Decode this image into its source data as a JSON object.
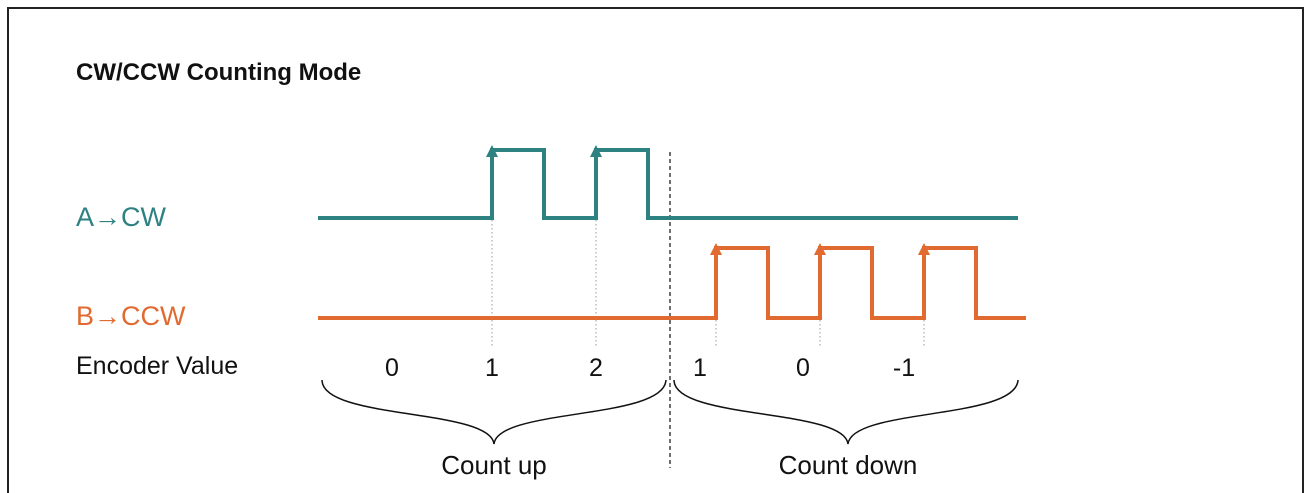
{
  "title": "CW/CCW Counting Mode",
  "colors": {
    "a_signal": "#2e8181",
    "b_signal": "#e06a30",
    "text": "#111111"
  },
  "signals": {
    "a": {
      "label": "A→CW"
    },
    "b": {
      "label": "B→CCW"
    }
  },
  "encoder": {
    "label": "Encoder Value",
    "values": [
      "0",
      "1",
      "2",
      "1",
      "0",
      "-1"
    ]
  },
  "groups": {
    "up": "Count up",
    "down": "Count down"
  }
}
